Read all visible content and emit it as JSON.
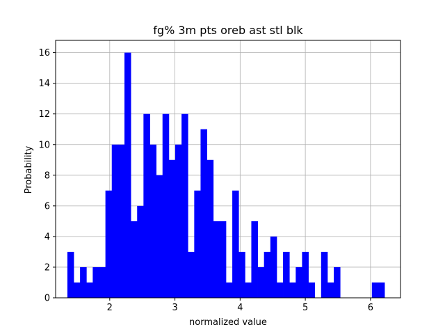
{
  "chart_data": {
    "type": "bar",
    "title": "fg% 3m pts oreb ast stl blk",
    "xlabel": "normalized value",
    "ylabel": "Probability",
    "xlim": [
      1.17,
      6.46
    ],
    "ylim": [
      0,
      16.8
    ],
    "xticks": [
      2,
      3,
      4,
      5,
      6
    ],
    "yticks": [
      0,
      2,
      4,
      6,
      8,
      10,
      12,
      14,
      16
    ],
    "grid": true,
    "bar_color": "#0000ff",
    "bin_start": 1.35,
    "bin_width": 0.0973,
    "values": [
      3,
      1,
      2,
      1,
      2,
      2,
      7,
      10,
      10,
      16,
      5,
      6,
      12,
      10,
      8,
      12,
      9,
      10,
      12,
      3,
      7,
      11,
      9,
      5,
      5,
      1,
      7,
      3,
      1,
      5,
      2,
      3,
      4,
      1,
      3,
      1,
      2,
      3,
      1,
      0,
      3,
      1,
      2,
      0,
      0,
      0,
      0,
      0,
      1,
      1
    ]
  }
}
